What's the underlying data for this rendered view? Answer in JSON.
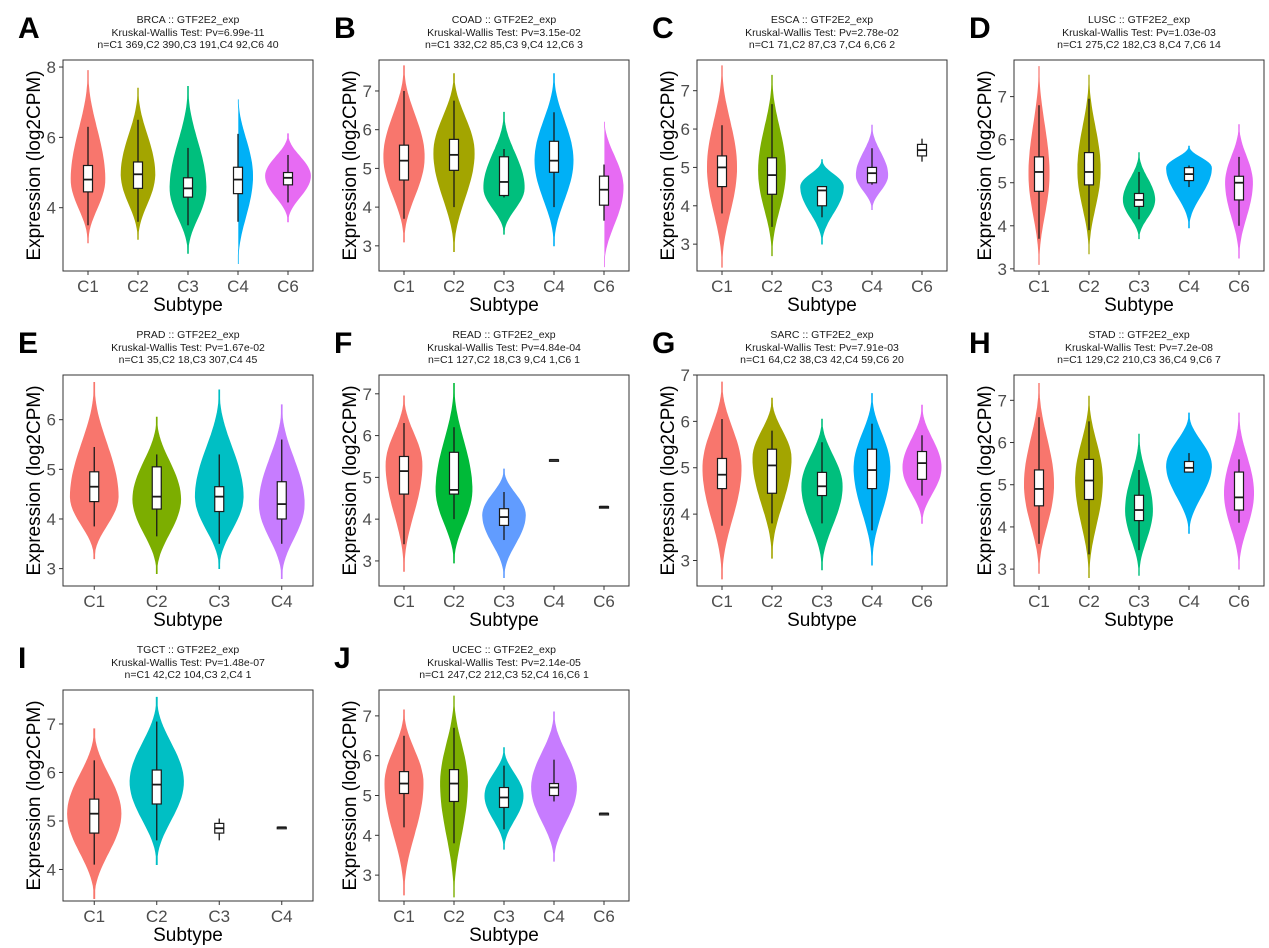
{
  "figure": {
    "gene": "GTF2E2_exp",
    "xlabel": "Subtype",
    "ylabel": "Expression (log2CPM)",
    "test_name": "Kruskal-Wallis Test"
  },
  "subtype_colors": {
    "five_group": [
      "#F8766D",
      "#A3A500",
      "#00BF7D",
      "#00B0F6",
      "#E76BF3"
    ],
    "four_group": [
      "#F8766D",
      "#7CAE00",
      "#00BFC4",
      "#C77CFF"
    ],
    "three_group": [
      "#F8766D",
      "#00BA38",
      "#619CFF"
    ],
    "two_group": [
      "#F8766D",
      "#00BFC4"
    ]
  },
  "chart_data": [
    {
      "type": "violin",
      "panel": "A",
      "title_lines": [
        "BRCA :: GTF2E2_exp",
        "Kruskal-Wallis Test: Pv=6.99e-11",
        "n=C1 369,C2 390,C3 191,C4 92,C6 40"
      ],
      "cancer": "BRCA",
      "pvalue": "6.99e-11",
      "categories": [
        "C1",
        "C2",
        "C3",
        "C4",
        "C6"
      ],
      "n": [
        369,
        390,
        191,
        92,
        40
      ],
      "colors": [
        "#F8766D",
        "#A3A500",
        "#00BF7D",
        "#00B0F6",
        "#E76BF3"
      ],
      "xlabel": "Subtype",
      "ylabel": "Expression (log2CPM)",
      "ylim": [
        2.2,
        8.2
      ],
      "yticks": [
        4,
        6,
        8
      ],
      "groups": [
        {
          "min": 3.0,
          "max": 7.9,
          "q1": 4.45,
          "median": 4.8,
          "q3": 5.2,
          "wlo": 3.5,
          "whi": 6.3,
          "peak": 4.8,
          "width": 0.75
        },
        {
          "min": 3.1,
          "max": 7.4,
          "q1": 4.55,
          "median": 4.95,
          "q3": 5.3,
          "wlo": 3.6,
          "whi": 6.5,
          "peak": 4.95,
          "width": 0.75
        },
        {
          "min": 2.7,
          "max": 7.45,
          "q1": 4.3,
          "median": 4.55,
          "q3": 4.85,
          "wlo": 3.5,
          "whi": 5.7,
          "peak": 4.55,
          "width": 0.8
        },
        {
          "min": 2.4,
          "max": 7.2,
          "q1": 4.4,
          "median": 4.8,
          "q3": 5.15,
          "wlo": 3.6,
          "whi": 6.1,
          "peak": 4.9,
          "width": 0.65
        },
        {
          "min": 3.6,
          "max": 6.1,
          "q1": 4.65,
          "median": 4.85,
          "q3": 5.0,
          "wlo": 4.15,
          "whi": 5.5,
          "peak": 4.9,
          "width": 1.0
        }
      ]
    },
    {
      "type": "violin",
      "panel": "B",
      "title_lines": [
        "COAD :: GTF2E2_exp",
        "Kruskal-Wallis Test: Pv=3.15e-02",
        "n=C1 332,C2 85,C3 9,C4 12,C6 3"
      ],
      "cancer": "COAD",
      "pvalue": "3.15e-02",
      "categories": [
        "C1",
        "C2",
        "C3",
        "C4",
        "C6"
      ],
      "n": [
        332,
        85,
        9,
        12,
        3
      ],
      "colors": [
        "#F8766D",
        "#A3A500",
        "#00BF7D",
        "#00B0F6",
        "#E76BF3"
      ],
      "xlabel": "Subtype",
      "ylabel": "Expression (log2CPM)",
      "ylim": [
        2.35,
        7.8
      ],
      "yticks": [
        3,
        4,
        5,
        6,
        7
      ],
      "groups": [
        {
          "min": 3.1,
          "max": 7.65,
          "q1": 4.7,
          "median": 5.2,
          "q3": 5.6,
          "wlo": 3.7,
          "whi": 7.0,
          "peak": 5.3,
          "width": 0.9
        },
        {
          "min": 2.85,
          "max": 7.45,
          "q1": 4.95,
          "median": 5.35,
          "q3": 5.75,
          "wlo": 4.0,
          "whi": 6.75,
          "peak": 5.4,
          "width": 0.9
        },
        {
          "min": 3.3,
          "max": 6.45,
          "q1": 4.3,
          "median": 4.65,
          "q3": 5.3,
          "wlo": 4.25,
          "whi": 5.5,
          "peak": 4.5,
          "width": 0.9
        },
        {
          "min": 3.0,
          "max": 7.45,
          "q1": 4.9,
          "median": 5.2,
          "q3": 5.7,
          "wlo": 4.0,
          "whi": 6.45,
          "peak": 5.2,
          "width": 0.85
        },
        {
          "min": 2.45,
          "max": 6.3,
          "q1": 4.05,
          "median": 4.45,
          "q3": 4.8,
          "wlo": 3.65,
          "whi": 5.1,
          "peak": 4.5,
          "width": 0.85
        }
      ]
    },
    {
      "type": "violin",
      "panel": "C",
      "title_lines": [
        "ESCA :: GTF2E2_exp",
        "Kruskal-Wallis Test: Pv=2.78e-02",
        "n=C1 71,C2 87,C3 7,C4 6,C6 2"
      ],
      "cancer": "ESCA",
      "pvalue": "2.78e-02",
      "categories": [
        "C1",
        "C2",
        "C3",
        "C4",
        "C6"
      ],
      "n": [
        71,
        87,
        7,
        6,
        2
      ],
      "colors": [
        "#F8766D",
        "#7CAE00",
        "#00BFC4",
        "#C77CFF",
        "#E76BF3"
      ],
      "xlabel": "Subtype",
      "ylabel": "Expression (log2CPM)",
      "ylim": [
        2.3,
        7.8
      ],
      "yticks": [
        3,
        4,
        5,
        6,
        7
      ],
      "groups": [
        {
          "min": 2.4,
          "max": 7.65,
          "q1": 4.5,
          "median": 5.0,
          "q3": 5.3,
          "wlo": 3.8,
          "whi": 6.1,
          "peak": 5.0,
          "width": 0.65
        },
        {
          "min": 2.7,
          "max": 7.4,
          "q1": 4.3,
          "median": 4.8,
          "q3": 5.25,
          "wlo": 3.45,
          "whi": 6.65,
          "peak": 4.9,
          "width": 0.6
        },
        {
          "min": 3.0,
          "max": 5.2,
          "q1": 4.0,
          "median": 4.4,
          "q3": 4.5,
          "wlo": 3.7,
          "whi": 4.5,
          "peak": 4.5,
          "width": 0.95
        },
        {
          "min": 3.9,
          "max": 6.1,
          "q1": 4.6,
          "median": 4.85,
          "q3": 5.0,
          "wlo": 4.55,
          "whi": 5.5,
          "peak": 4.8,
          "width": 0.7
        },
        {
          "min": 5.3,
          "max": 5.6,
          "q1": 5.3,
          "median": 5.45,
          "q3": 5.6,
          "wlo": 5.15,
          "whi": 5.75,
          "peak": 5.45,
          "width": 0
        }
      ]
    },
    {
      "type": "violin",
      "panel": "D",
      "title_lines": [
        "LUSC :: GTF2E2_exp",
        "Kruskal-Wallis Test: Pv=1.03e-03",
        "n=C1 275,C2 182,C3 8,C4 7,C6 14"
      ],
      "cancer": "LUSC",
      "pvalue": "1.03e-03",
      "categories": [
        "C1",
        "C2",
        "C3",
        "C4",
        "C6"
      ],
      "n": [
        275,
        182,
        8,
        7,
        14
      ],
      "colors": [
        "#F8766D",
        "#A3A500",
        "#00BF7D",
        "#00B0F6",
        "#E76BF3"
      ],
      "xlabel": "Subtype",
      "ylabel": "Expression (log2CPM)",
      "ylim": [
        2.95,
        7.85
      ],
      "yticks": [
        3,
        4,
        5,
        6,
        7
      ],
      "groups": [
        {
          "min": 3.1,
          "max": 7.7,
          "q1": 4.8,
          "median": 5.25,
          "q3": 5.6,
          "wlo": 3.7,
          "whi": 6.8,
          "peak": 5.2,
          "width": 0.45
        },
        {
          "min": 3.35,
          "max": 7.5,
          "q1": 4.95,
          "median": 5.25,
          "q3": 5.7,
          "wlo": 3.9,
          "whi": 6.95,
          "peak": 5.3,
          "width": 0.5
        },
        {
          "min": 3.7,
          "max": 5.7,
          "q1": 4.45,
          "median": 4.6,
          "q3": 4.75,
          "wlo": 4.15,
          "whi": 5.25,
          "peak": 4.6,
          "width": 0.7
        },
        {
          "min": 3.95,
          "max": 5.85,
          "q1": 5.05,
          "median": 5.2,
          "q3": 5.35,
          "wlo": 4.9,
          "whi": 5.4,
          "peak": 5.35,
          "width": 1.0
        },
        {
          "min": 3.25,
          "max": 6.35,
          "q1": 4.6,
          "median": 5.0,
          "q3": 5.15,
          "wlo": 4.0,
          "whi": 5.6,
          "peak": 5.0,
          "width": 0.6
        }
      ]
    },
    {
      "type": "violin",
      "panel": "E",
      "title_lines": [
        "PRAD :: GTF2E2_exp",
        "Kruskal-Wallis Test: Pv=1.67e-02",
        "n=C1 35,C2 18,C3 307,C4 45"
      ],
      "cancer": "PRAD",
      "pvalue": "1.67e-02",
      "categories": [
        "C1",
        "C2",
        "C3",
        "C4"
      ],
      "n": [
        35,
        18,
        307,
        45
      ],
      "colors": [
        "#F8766D",
        "#7CAE00",
        "#00BFC4",
        "#C77CFF"
      ],
      "xlabel": "Subtype",
      "ylabel": "Expression (log2CPM)",
      "ylim": [
        2.65,
        6.9
      ],
      "yticks": [
        3,
        4,
        5,
        6
      ],
      "groups": [
        {
          "min": 3.2,
          "max": 6.75,
          "q1": 4.35,
          "median": 4.65,
          "q3": 4.95,
          "wlo": 3.85,
          "whi": 5.45,
          "peak": 4.45,
          "width": 0.85
        },
        {
          "min": 2.9,
          "max": 6.05,
          "q1": 4.2,
          "median": 4.45,
          "q3": 5.05,
          "wlo": 3.65,
          "whi": 5.3,
          "peak": 4.4,
          "width": 0.85
        },
        {
          "min": 3.0,
          "max": 6.6,
          "q1": 4.15,
          "median": 4.45,
          "q3": 4.65,
          "wlo": 3.5,
          "whi": 5.3,
          "peak": 4.45,
          "width": 0.85
        },
        {
          "min": 2.8,
          "max": 6.3,
          "q1": 4.0,
          "median": 4.3,
          "q3": 4.75,
          "wlo": 3.5,
          "whi": 5.6,
          "peak": 4.3,
          "width": 0.8
        }
      ]
    },
    {
      "type": "violin",
      "panel": "F",
      "title_lines": [
        "READ :: GTF2E2_exp",
        "Kruskal-Wallis Test: Pv=4.84e-04",
        "n=C1 127,C2 18,C3 9,C4 1,C6 1"
      ],
      "cancer": "READ",
      "pvalue": "4.84e-04",
      "categories": [
        "C1",
        "C2",
        "C3",
        "C4",
        "C6"
      ],
      "n": [
        127,
        18,
        9,
        1,
        1
      ],
      "colors": [
        "#F8766D",
        "#00BA38",
        "#619CFF",
        "#000000",
        "#000000"
      ],
      "xlabel": "Subtype",
      "ylabel": "Expression (log2CPM)",
      "ylim": [
        2.4,
        7.45
      ],
      "yticks": [
        3,
        4,
        5,
        6,
        7
      ],
      "groups": [
        {
          "min": 2.75,
          "max": 6.95,
          "q1": 4.6,
          "median": 5.15,
          "q3": 5.5,
          "wlo": 3.4,
          "whi": 6.3,
          "peak": 5.3,
          "width": 0.8
        },
        {
          "min": 2.95,
          "max": 7.25,
          "q1": 4.6,
          "median": 4.7,
          "q3": 5.6,
          "wlo": 4.0,
          "whi": 6.2,
          "peak": 4.7,
          "width": 0.8
        },
        {
          "min": 2.6,
          "max": 5.2,
          "q1": 3.85,
          "median": 4.05,
          "q3": 4.25,
          "wlo": 3.5,
          "whi": 4.65,
          "peak": 4.1,
          "width": 0.95
        },
        {
          "min": 5.42,
          "max": 5.42,
          "q1": 5.42,
          "median": 5.42,
          "q3": 5.42,
          "wlo": 5.42,
          "whi": 5.42,
          "peak": 5.42,
          "width": 0
        },
        {
          "min": 4.3,
          "max": 4.3,
          "q1": 4.3,
          "median": 4.3,
          "q3": 4.3,
          "wlo": 4.3,
          "whi": 4.3,
          "peak": 4.3,
          "width": 0
        }
      ]
    },
    {
      "type": "violin",
      "panel": "G",
      "title_lines": [
        "SARC :: GTF2E2_exp",
        "Kruskal-Wallis Test: Pv=7.91e-03",
        "n=C1 64,C2 38,C3 42,C4 59,C6 20"
      ],
      "cancer": "SARC",
      "pvalue": "7.91e-03",
      "categories": [
        "C1",
        "C2",
        "C3",
        "C4",
        "C6"
      ],
      "n": [
        64,
        38,
        42,
        59,
        20
      ],
      "colors": [
        "#F8766D",
        "#A3A500",
        "#00BF7D",
        "#00B0F6",
        "#E76BF3"
      ],
      "xlabel": "Subtype",
      "ylabel": "Expression (log2CPM)",
      "ylim": [
        2.45,
        7.0
      ],
      "yticks": [
        3,
        4,
        5,
        6,
        7
      ],
      "groups": [
        {
          "min": 2.6,
          "max": 6.85,
          "q1": 4.55,
          "median": 4.85,
          "q3": 5.2,
          "wlo": 3.75,
          "whi": 6.05,
          "peak": 5.0,
          "width": 0.85
        },
        {
          "min": 3.05,
          "max": 6.5,
          "q1": 4.45,
          "median": 5.05,
          "q3": 5.4,
          "wlo": 3.8,
          "whi": 5.8,
          "peak": 5.2,
          "width": 0.85
        },
        {
          "min": 2.8,
          "max": 6.05,
          "q1": 4.4,
          "median": 4.6,
          "q3": 4.9,
          "wlo": 3.8,
          "whi": 5.55,
          "peak": 4.6,
          "width": 0.9
        },
        {
          "min": 2.9,
          "max": 6.6,
          "q1": 4.55,
          "median": 4.95,
          "q3": 5.4,
          "wlo": 3.65,
          "whi": 5.95,
          "peak": 5.0,
          "width": 0.8
        },
        {
          "min": 3.8,
          "max": 6.35,
          "q1": 4.75,
          "median": 5.1,
          "q3": 5.35,
          "wlo": 4.4,
          "whi": 5.7,
          "peak": 5.0,
          "width": 0.85
        }
      ]
    },
    {
      "type": "violin",
      "panel": "H",
      "title_lines": [
        "STAD :: GTF2E2_exp",
        "Kruskal-Wallis Test: Pv=7.2e-08",
        "n=C1 129,C2 210,C3 36,C4 9,C6 7"
      ],
      "cancer": "STAD",
      "pvalue": "7.2e-08",
      "categories": [
        "C1",
        "C2",
        "C3",
        "C4",
        "C6"
      ],
      "n": [
        129,
        210,
        36,
        9,
        7
      ],
      "colors": [
        "#F8766D",
        "#A3A500",
        "#00BF7D",
        "#00B0F6",
        "#E76BF3"
      ],
      "xlabel": "Subtype",
      "ylabel": "Expression (log2CPM)",
      "ylim": [
        2.6,
        7.6
      ],
      "yticks": [
        3,
        4,
        5,
        6,
        7
      ],
      "groups": [
        {
          "min": 2.9,
          "max": 7.4,
          "q1": 4.5,
          "median": 4.9,
          "q3": 5.35,
          "wlo": 3.6,
          "whi": 6.6,
          "peak": 5.0,
          "width": 0.65
        },
        {
          "min": 2.8,
          "max": 7.1,
          "q1": 4.65,
          "median": 5.1,
          "q3": 5.6,
          "wlo": 3.35,
          "whi": 6.5,
          "peak": 5.1,
          "width": 0.6
        },
        {
          "min": 2.85,
          "max": 6.2,
          "q1": 4.15,
          "median": 4.4,
          "q3": 4.75,
          "wlo": 3.45,
          "whi": 5.35,
          "peak": 4.4,
          "width": 0.6
        },
        {
          "min": 3.85,
          "max": 6.7,
          "q1": 5.3,
          "median": 5.4,
          "q3": 5.55,
          "wlo": 5.3,
          "whi": 5.75,
          "peak": 5.45,
          "width": 1.0
        },
        {
          "min": 3.0,
          "max": 6.7,
          "q1": 4.4,
          "median": 4.7,
          "q3": 5.3,
          "wlo": 4.1,
          "whi": 5.6,
          "peak": 4.8,
          "width": 0.65
        }
      ]
    },
    {
      "type": "violin",
      "panel": "I",
      "title_lines": [
        "TGCT :: GTF2E2_exp",
        "Kruskal-Wallis Test: Pv=1.48e-07",
        "n=C1 42,C2 104,C3 2,C4 1"
      ],
      "cancer": "TGCT",
      "pvalue": "1.48e-07",
      "categories": [
        "C1",
        "C2",
        "C3",
        "C4"
      ],
      "n": [
        42,
        104,
        2,
        1
      ],
      "colors": [
        "#F8766D",
        "#00BFC4",
        "#000000",
        "#000000"
      ],
      "xlabel": "Subtype",
      "ylabel": "Expression (log2CPM)",
      "ylim": [
        3.35,
        7.7
      ],
      "yticks": [
        4,
        5,
        6,
        7
      ],
      "groups": [
        {
          "min": 3.4,
          "max": 6.9,
          "q1": 4.75,
          "median": 5.15,
          "q3": 5.45,
          "wlo": 4.1,
          "whi": 6.25,
          "peak": 5.15,
          "width": 0.95
        },
        {
          "min": 4.1,
          "max": 7.55,
          "q1": 5.35,
          "median": 5.75,
          "q3": 6.05,
          "wlo": 4.6,
          "whi": 7.05,
          "peak": 5.8,
          "width": 0.95
        },
        {
          "min": 4.75,
          "max": 4.95,
          "q1": 4.75,
          "median": 4.85,
          "q3": 4.95,
          "wlo": 4.6,
          "whi": 5.05,
          "peak": 4.85,
          "width": 0
        },
        {
          "min": 4.87,
          "max": 4.87,
          "q1": 4.87,
          "median": 4.87,
          "q3": 4.87,
          "wlo": 4.87,
          "whi": 4.87,
          "peak": 4.87,
          "width": 0
        }
      ]
    },
    {
      "type": "violin",
      "panel": "J",
      "title_lines": [
        "UCEC :: GTF2E2_exp",
        "Kruskal-Wallis Test: Pv=2.14e-05",
        "n=C1 247,C2 212,C3 52,C4 16,C6 1"
      ],
      "cancer": "UCEC",
      "pvalue": "2.14e-05",
      "categories": [
        "C1",
        "C2",
        "C3",
        "C4",
        "C6"
      ],
      "n": [
        247,
        212,
        52,
        16,
        1
      ],
      "colors": [
        "#F8766D",
        "#7CAE00",
        "#00BFC4",
        "#C77CFF",
        "#000000"
      ],
      "xlabel": "Subtype",
      "ylabel": "Expression (log2CPM)",
      "ylim": [
        2.35,
        7.65
      ],
      "yticks": [
        3,
        4,
        5,
        6,
        7
      ],
      "groups": [
        {
          "min": 2.5,
          "max": 7.15,
          "q1": 5.05,
          "median": 5.3,
          "q3": 5.6,
          "wlo": 4.2,
          "whi": 6.5,
          "peak": 5.3,
          "width": 0.85
        },
        {
          "min": 2.45,
          "max": 7.5,
          "q1": 4.85,
          "median": 5.3,
          "q3": 5.65,
          "wlo": 3.8,
          "whi": 6.7,
          "peak": 5.3,
          "width": 0.6
        },
        {
          "min": 3.65,
          "max": 6.2,
          "q1": 4.7,
          "median": 4.95,
          "q3": 5.2,
          "wlo": 4.15,
          "whi": 5.75,
          "peak": 5.0,
          "width": 0.85
        },
        {
          "min": 3.35,
          "max": 7.1,
          "q1": 5.0,
          "median": 5.2,
          "q3": 5.3,
          "wlo": 4.85,
          "whi": 5.9,
          "peak": 5.2,
          "width": 1.0
        },
        {
          "min": 4.55,
          "max": 4.55,
          "q1": 4.55,
          "median": 4.55,
          "q3": 4.55,
          "wlo": 4.55,
          "whi": 4.55,
          "peak": 4.55,
          "width": 0
        }
      ]
    }
  ]
}
